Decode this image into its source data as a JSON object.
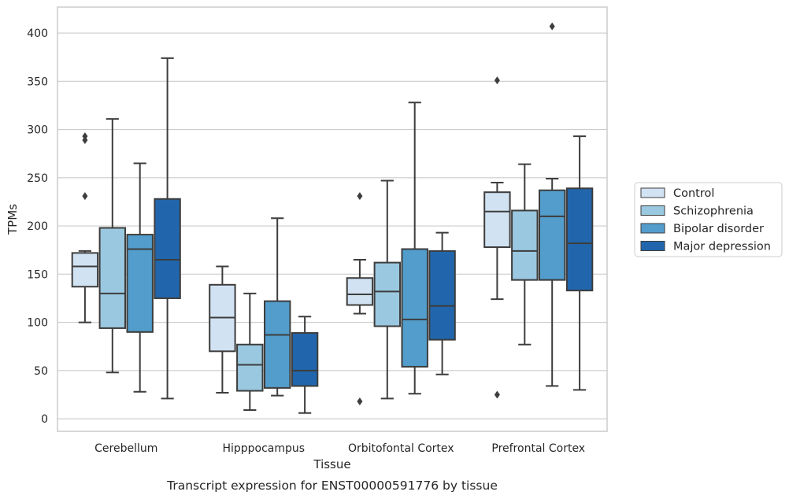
{
  "caption": "Transcript expression for ENST00000591776 by tissue",
  "chart_data": {
    "type": "box",
    "xlabel": "Tissue",
    "ylabel": "TPMs",
    "ylim": [
      -13,
      427
    ],
    "yticks": [
      0,
      50,
      100,
      150,
      200,
      250,
      300,
      350,
      400
    ],
    "grid": "horizontal",
    "legend_position": "right",
    "categories": [
      "Cerebellum",
      "Hipppocampus",
      "Orbitofontal Cortex",
      "Prefrontal Cortex"
    ],
    "series": [
      {
        "name": "Control",
        "color": "#d1e2f2",
        "boxes": [
          {
            "whisker_low": 100,
            "q1": 137,
            "median": 158,
            "q3": 172,
            "whisker_high": 174,
            "outliers": [
              231,
              289,
              293
            ]
          },
          {
            "whisker_low": 27,
            "q1": 70,
            "median": 105,
            "q3": 139,
            "whisker_high": 158,
            "outliers": []
          },
          {
            "whisker_low": 109,
            "q1": 118,
            "median": 129,
            "q3": 146,
            "whisker_high": 165,
            "outliers": [
              18,
              231
            ]
          },
          {
            "whisker_low": 124,
            "q1": 178,
            "median": 215,
            "q3": 235,
            "whisker_high": 245,
            "outliers": [
              25,
              351
            ]
          }
        ]
      },
      {
        "name": "Schizophrenia",
        "color": "#9ac8e0",
        "boxes": [
          {
            "whisker_low": 48,
            "q1": 94,
            "median": 130,
            "q3": 198,
            "whisker_high": 311,
            "outliers": []
          },
          {
            "whisker_low": 9,
            "q1": 29,
            "median": 56,
            "q3": 77,
            "whisker_high": 130,
            "outliers": []
          },
          {
            "whisker_low": 21,
            "q1": 96,
            "median": 132,
            "q3": 162,
            "whisker_high": 247,
            "outliers": []
          },
          {
            "whisker_low": 77,
            "q1": 144,
            "median": 174,
            "q3": 216,
            "whisker_high": 264,
            "outliers": []
          }
        ]
      },
      {
        "name": "Bipolar disorder",
        "color": "#529dcc",
        "boxes": [
          {
            "whisker_low": 28,
            "q1": 90,
            "median": 176,
            "q3": 191,
            "whisker_high": 265,
            "outliers": []
          },
          {
            "whisker_low": 24,
            "q1": 32,
            "median": 87,
            "q3": 122,
            "whisker_high": 208,
            "outliers": []
          },
          {
            "whisker_low": 26,
            "q1": 54,
            "median": 103,
            "q3": 176,
            "whisker_high": 328,
            "outliers": []
          },
          {
            "whisker_low": 34,
            "q1": 144,
            "median": 210,
            "q3": 237,
            "whisker_high": 249,
            "outliers": [
              407
            ]
          }
        ]
      },
      {
        "name": "Major depression",
        "color": "#2166ac",
        "boxes": [
          {
            "whisker_low": 21,
            "q1": 125,
            "median": 165,
            "q3": 228,
            "whisker_high": 374,
            "outliers": []
          },
          {
            "whisker_low": 6,
            "q1": 34,
            "median": 50,
            "q3": 89,
            "whisker_high": 106,
            "outliers": []
          },
          {
            "whisker_low": 46,
            "q1": 82,
            "median": 117,
            "q3": 174,
            "whisker_high": 193,
            "outliers": []
          },
          {
            "whisker_low": 30,
            "q1": 133,
            "median": 182,
            "q3": 239,
            "whisker_high": 293,
            "outliers": []
          }
        ]
      }
    ]
  }
}
